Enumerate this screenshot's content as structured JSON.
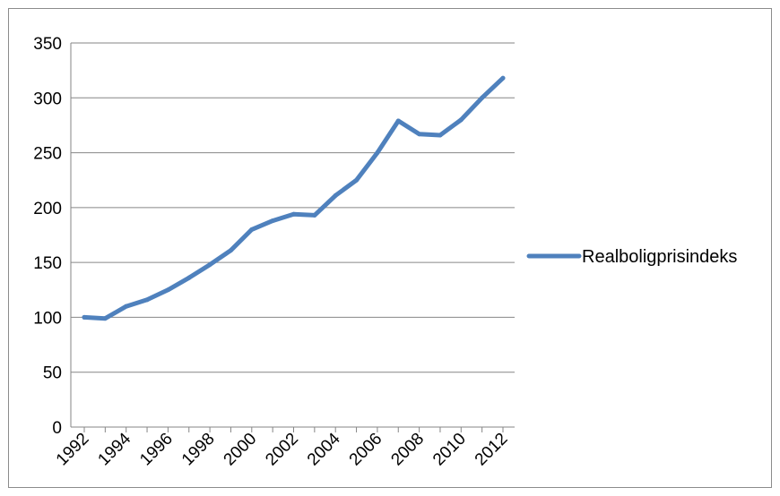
{
  "chart_data": {
    "type": "line",
    "title": "",
    "xlabel": "",
    "ylabel": "",
    "ylim": [
      0,
      350
    ],
    "y_ticks": [
      0,
      50,
      100,
      150,
      200,
      250,
      300,
      350
    ],
    "x_tick_labels": [
      "1992",
      "1994",
      "1996",
      "1998",
      "2000",
      "2002",
      "2004",
      "2006",
      "2008",
      "2010",
      "2012"
    ],
    "grid": "horizontal",
    "legend_position": "right",
    "colors": {
      "series": "#4f81bd",
      "grid": "#868686",
      "axis": "#868686"
    },
    "x": [
      1992,
      1993,
      1994,
      1995,
      1996,
      1997,
      1998,
      1999,
      2000,
      2001,
      2002,
      2003,
      2004,
      2005,
      2006,
      2007,
      2008,
      2009,
      2010,
      2011,
      2012
    ],
    "series": [
      {
        "name": "Realboligprisindeks",
        "values": [
          100,
          99,
          110,
          116,
          125,
          136,
          148,
          161,
          180,
          188,
          194,
          193,
          211,
          225,
          250,
          279,
          267,
          266,
          280,
          300,
          318
        ]
      }
    ]
  }
}
